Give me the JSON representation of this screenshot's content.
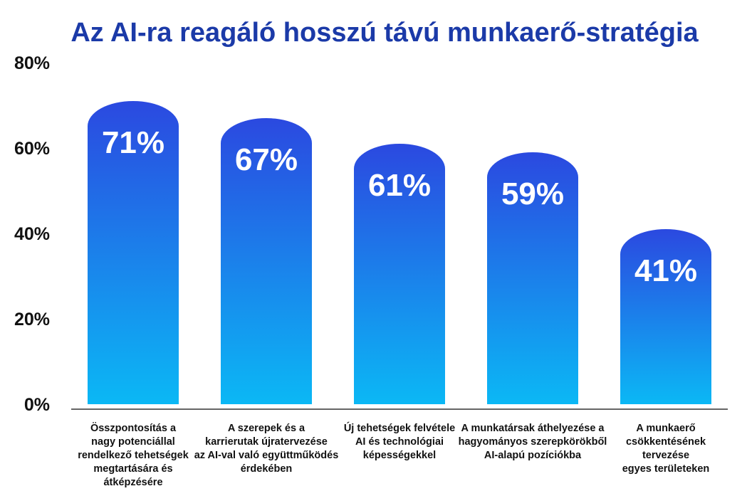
{
  "chart_data": {
    "type": "bar",
    "title": "Az AI-ra reagáló hosszú távú munkaerő-stratégia",
    "xlabel": "",
    "ylabel": "",
    "ylim": [
      0,
      80
    ],
    "yticks": [
      "0%",
      "20%",
      "40%",
      "60%",
      "80%"
    ],
    "grid": false,
    "categories": [
      [
        "Összpontosítás a",
        "nagy potenciállal",
        "rendelkező tehetségek",
        "megtartására és",
        "átképzésére"
      ],
      [
        "A szerepek és a",
        "karrierutak újratervezése",
        "az AI-val való együttműködés",
        "érdekében"
      ],
      [
        "Új tehetségek felvétele",
        "AI és technológiai",
        "képességekkel"
      ],
      [
        "A munkatársak áthelyezése a",
        "hagyományos szerepkörökből",
        "AI-alapú pozíciókba"
      ],
      [
        "A munkaerő",
        "csökkentésének",
        "tervezése",
        "egyes területeken"
      ]
    ],
    "values": [
      71,
      67,
      61,
      59,
      41
    ],
    "data_labels": [
      "71%",
      "67%",
      "61%",
      "59%",
      "41%"
    ],
    "colors": {
      "bar_top": "#2b49e0",
      "bar_bottom": "#0bb8f5",
      "title": "#1b3aa8"
    }
  }
}
